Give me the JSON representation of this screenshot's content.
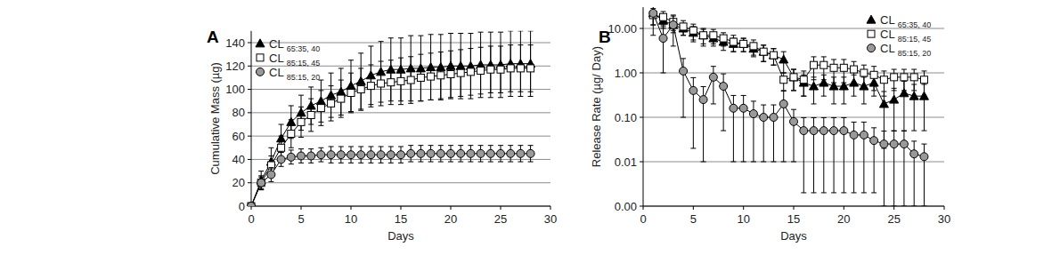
{
  "chart_data": [
    {
      "type": "line",
      "title": "A",
      "x_label": "Days",
      "y_label": "Cumulative Mass (µg)",
      "x": [
        0,
        1,
        2,
        3,
        4,
        5,
        6,
        7,
        8,
        9,
        10,
        11,
        12,
        13,
        14,
        15,
        16,
        17,
        18,
        19,
        20,
        21,
        22,
        23,
        24,
        25,
        26,
        27,
        28
      ],
      "series": [
        {
          "name": "CL 65:35, 40",
          "color": "#000000",
          "marker": "triangle",
          "values": [
            0,
            22,
            38,
            58,
            72,
            80,
            86,
            90,
            95,
            98,
            103,
            107,
            112,
            115,
            117,
            117,
            118,
            118,
            119,
            119,
            120,
            120,
            120,
            121,
            121,
            121,
            122,
            122,
            122
          ],
          "errors": [
            0,
            8,
            12,
            12,
            14,
            15,
            16,
            18,
            19,
            20,
            22,
            24,
            25,
            26,
            27,
            27,
            28,
            28,
            28,
            28,
            28,
            28,
            28,
            28,
            28,
            28,
            28,
            28,
            28
          ]
        },
        {
          "name": "CL 85:15, 45",
          "color": "#ffffff",
          "marker": "square",
          "values": [
            0,
            20,
            35,
            50,
            62,
            72,
            78,
            84,
            88,
            92,
            97,
            100,
            103,
            105,
            106,
            107,
            108,
            110,
            111,
            112,
            113,
            114,
            115,
            116,
            117,
            117,
            118,
            118,
            118
          ],
          "errors": [
            0,
            6,
            8,
            10,
            12,
            13,
            14,
            15,
            15,
            16,
            17,
            18,
            18,
            19,
            19,
            20,
            20,
            20,
            20,
            20,
            20,
            20,
            20,
            20,
            20,
            20,
            20,
            20,
            20
          ]
        },
        {
          "name": "CL 85:15, 20",
          "color": "#999999",
          "marker": "circle",
          "values": [
            0,
            20,
            27,
            40,
            42,
            43,
            43,
            44,
            44,
            44,
            44,
            44,
            44,
            44,
            44,
            44,
            45,
            45,
            45,
            45,
            45,
            45,
            45,
            45,
            45,
            45,
            45,
            45,
            45
          ],
          "errors": [
            0,
            5,
            6,
            6,
            6,
            6,
            6,
            6,
            7,
            7,
            7,
            7,
            7,
            7,
            7,
            7,
            7,
            7,
            7,
            7,
            7,
            7,
            7,
            7,
            7,
            7,
            7,
            7,
            7
          ]
        }
      ],
      "xlim": [
        0,
        30
      ],
      "xticks": [
        0,
        5,
        10,
        15,
        20,
        25,
        30
      ],
      "ylim": [
        0,
        150
      ],
      "yticks": [
        0,
        20,
        40,
        60,
        80,
        100,
        120,
        140
      ],
      "grid": true,
      "legend": "upper left"
    },
    {
      "type": "line",
      "title": "B",
      "x_label": "Days",
      "y_label": "Release Rate (µg/ Day)",
      "x": [
        1,
        2,
        3,
        4,
        5,
        6,
        7,
        8,
        9,
        10,
        11,
        12,
        13,
        14,
        15,
        16,
        17,
        18,
        19,
        20,
        21,
        22,
        23,
        24,
        25,
        26,
        27,
        28
      ],
      "series": [
        {
          "name": "CL 65:35, 40",
          "color": "#000000",
          "marker": "triangle",
          "values": [
            22,
            15,
            12,
            10,
            8,
            7,
            6,
            5,
            4.5,
            4.5,
            3.5,
            3,
            2.5,
            2,
            0.8,
            0.6,
            0.5,
            0.6,
            0.5,
            0.5,
            0.6,
            0.5,
            0.6,
            0.2,
            0.25,
            0.35,
            0.3,
            0.3
          ],
          "errors": [
            10,
            5,
            4,
            3,
            3,
            2.5,
            2,
            1.8,
            1.5,
            1.5,
            1.2,
            1.2,
            1,
            1,
            0.4,
            0.3,
            0.3,
            0.3,
            0.3,
            0.3,
            0.3,
            0.3,
            0.3,
            0.18,
            0.2,
            0.3,
            0.25,
            0.25
          ]
        },
        {
          "name": "CL 85:15, 45",
          "color": "#ffffff",
          "marker": "square",
          "values": [
            20,
            18,
            14,
            11,
            9,
            7,
            7,
            6,
            5,
            4.5,
            4,
            3,
            2.5,
            0.7,
            0.8,
            0.7,
            1.5,
            1.5,
            1.3,
            1.3,
            1.2,
            1,
            0.9,
            0.7,
            0.8,
            0.8,
            0.8,
            0.7
          ],
          "errors": [
            8,
            6,
            5,
            4,
            3.5,
            3,
            2.5,
            2,
            2,
            1.5,
            1.5,
            1.2,
            1,
            0.3,
            0.4,
            0.4,
            0.8,
            0.8,
            0.7,
            0.7,
            0.6,
            0.5,
            0.5,
            0.4,
            0.4,
            0.4,
            0.4,
            0.4
          ]
        },
        {
          "name": "CL 85:15, 20",
          "color": "#999999",
          "marker": "circle",
          "values": [
            22,
            6,
            12,
            1.1,
            0.4,
            0.25,
            0.8,
            0.5,
            0.16,
            0.16,
            0.12,
            0.1,
            0.1,
            0.2,
            0.08,
            0.05,
            0.05,
            0.05,
            0.05,
            0.05,
            0.04,
            0.04,
            0.03,
            0.025,
            0.025,
            0.025,
            0.015,
            0.013
          ],
          "errors": [
            15,
            5,
            8,
            1,
            0.38,
            0.24,
            0.6,
            0.45,
            0.15,
            0.15,
            0.11,
            0.09,
            0.09,
            0.19,
            0.07,
            0.048,
            0.048,
            0.048,
            0.048,
            0.048,
            0.038,
            0.038,
            0.028,
            0.024,
            0.024,
            0.024,
            0.014,
            0.012
          ]
        }
      ],
      "xlim": [
        0,
        30
      ],
      "xticks": [
        0,
        5,
        10,
        15,
        20,
        25,
        30
      ],
      "ylim": [
        0.001,
        30
      ],
      "yticks": [
        {
          "value": 0.001,
          "label": "0.00"
        },
        {
          "value": 0.01,
          "label": "0.01"
        },
        {
          "value": 0.1,
          "label": "0.10"
        },
        {
          "value": 1,
          "label": "1.00"
        },
        {
          "value": 10,
          "label": "10.00"
        }
      ],
      "log": "y",
      "grid": true,
      "legend": "upper right"
    }
  ]
}
